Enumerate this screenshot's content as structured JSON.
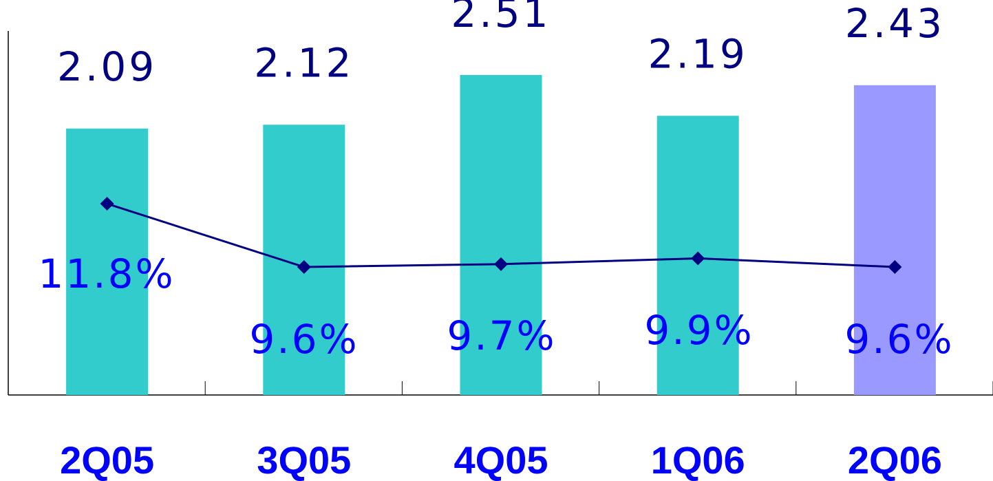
{
  "chart_data": {
    "type": "bar",
    "categories": [
      "2Q05",
      "3Q05",
      "4Q05",
      "1Q06",
      "2Q06"
    ],
    "series": [
      {
        "type": "bar",
        "values": [
          2.09,
          2.12,
          2.51,
          2.19,
          2.43
        ],
        "value_labels": [
          "2.09",
          "2.12",
          "2.51",
          "2.19",
          "2.43"
        ],
        "colors": [
          "#33CCCC",
          "#33CCCC",
          "#33CCCC",
          "#33CCCC",
          "#9999FF"
        ]
      },
      {
        "type": "line",
        "values": [
          11.8,
          9.6,
          9.7,
          9.9,
          9.6
        ],
        "value_labels": [
          "11.8%",
          "9.6%",
          "9.7%",
          "9.9%",
          "9.6%"
        ],
        "color": "#000080",
        "marker": "diamond"
      }
    ],
    "colors": {
      "bar": "#33CCCC",
      "bar_highlight": "#9999FF",
      "bar_label": "#000080",
      "line": "#000080",
      "line_label": "#0000FF",
      "category_label": "#0000FF",
      "axis": "#000000"
    },
    "grid": false,
    "legend": "none"
  }
}
